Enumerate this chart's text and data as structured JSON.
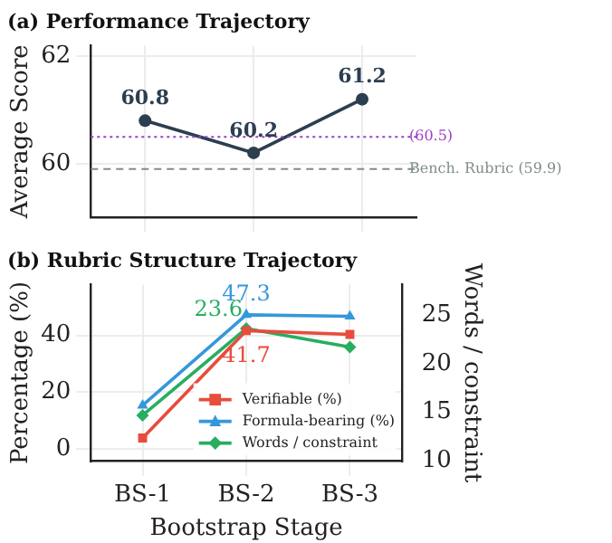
{
  "chart_data": [
    {
      "type": "line",
      "title": "(a) Performance Trajectory",
      "ylabel": "Average Score",
      "categories": [
        null,
        null,
        null
      ],
      "series": [
        {
          "color": "#2c3e50",
          "values": [
            60.8,
            60.2,
            61.2
          ]
        }
      ],
      "data_labels": true,
      "ylim": [
        59,
        62.2
      ],
      "yticks": [
        60,
        62
      ],
      "grid": true,
      "marker": "circle",
      "tick_labels": "y",
      "legend": false,
      "ref_lines": [
        {
          "axis": "y",
          "value": 60.5,
          "label": "(60.5)",
          "color": "#9b3fc4",
          "line_style": "dotted"
        },
        {
          "axis": "y",
          "value": 59.9,
          "label": "Bench. Rubric (59.9)",
          "color": "#7f8c8d",
          "line_style": "dashed"
        }
      ]
    },
    {
      "type": "line",
      "title": "(b) Rubric Structure Trajectory",
      "xlabel": "Bootstrap Stage",
      "ylabel": "Percentage (%)",
      "y2label": "Words / constraint",
      "categories": [
        "BS-1",
        "BS-2",
        "BS-3"
      ],
      "series": [
        {
          "name": "Verifiable (%)",
          "color": "#e74c3c",
          "marker": "square",
          "values": [
            3.8,
            41.7,
            40.4
          ],
          "value_labels": [
            null,
            "41.7",
            null
          ]
        },
        {
          "name": "Formula-bearing (%)",
          "color": "#3498db",
          "marker": "triangle",
          "values": [
            15.3,
            47.3,
            46.8
          ],
          "value_labels": [
            null,
            "47.3",
            null
          ]
        },
        {
          "name": "Words / constraint",
          "color": "#27ae60",
          "marker": "diamond",
          "axis": "y2",
          "values": [
            14.7,
            23.6,
            21.7
          ],
          "value_labels": [
            null,
            "23.6",
            null
          ]
        }
      ],
      "ylim": [
        -4.4,
        58
      ],
      "yticks": [
        0,
        20,
        40
      ],
      "y2lim": [
        10,
        28.1
      ],
      "y2ticks": [
        10,
        15,
        20,
        25
      ],
      "grid": true,
      "legend": "bottom right"
    }
  ]
}
